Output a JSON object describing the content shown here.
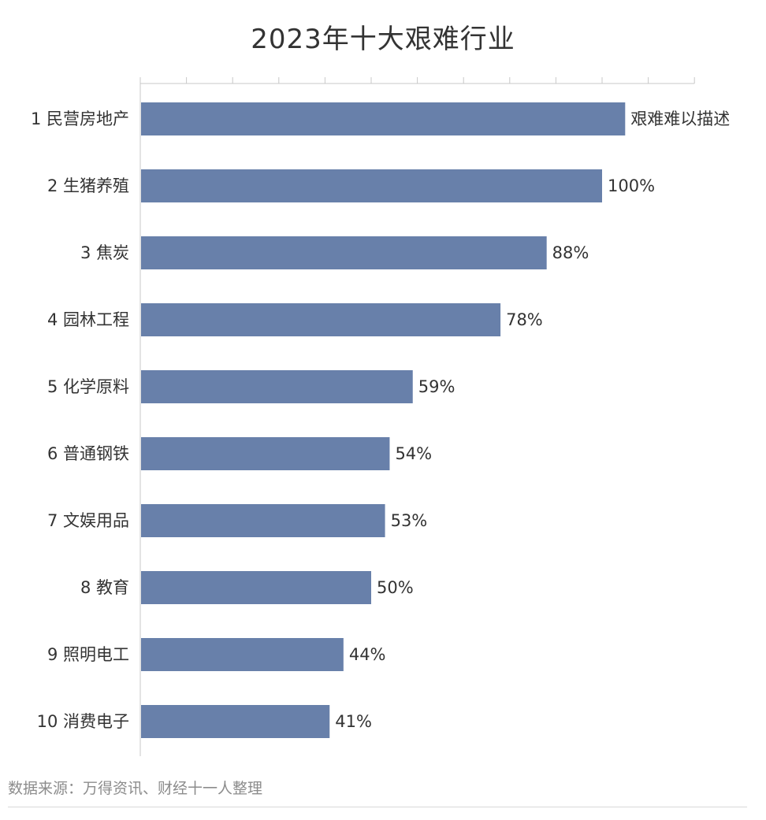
{
  "chart_data": {
    "type": "bar",
    "orientation": "horizontal",
    "title": "2023年十大艰难行业",
    "categories": [
      "1 民营房地产",
      "2 生猪养殖",
      "3 焦炭",
      "4 园林工程",
      "5 化学原料",
      "6 普通钢铁",
      "7 文娱用品",
      "8 教育",
      "9 照明电工",
      "10 消费电子"
    ],
    "values": [
      105,
      100,
      88,
      78,
      59,
      54,
      53,
      50,
      44,
      41
    ],
    "data_labels": [
      "艰难难以描述",
      "100%",
      "88%",
      "78%",
      "59%",
      "54%",
      "53%",
      "50%",
      "44%",
      "41%"
    ],
    "xlim": [
      0,
      120
    ],
    "x_tick_step": 10,
    "x_tick_position": "top",
    "x_tick_labels_shown": false,
    "grid": false,
    "legend": "none",
    "colors": {
      "bar": "#6880aa",
      "axis": "#c8c8c8",
      "text": "#333333"
    },
    "source": "数据来源：万得资讯、财经十一人整理"
  }
}
